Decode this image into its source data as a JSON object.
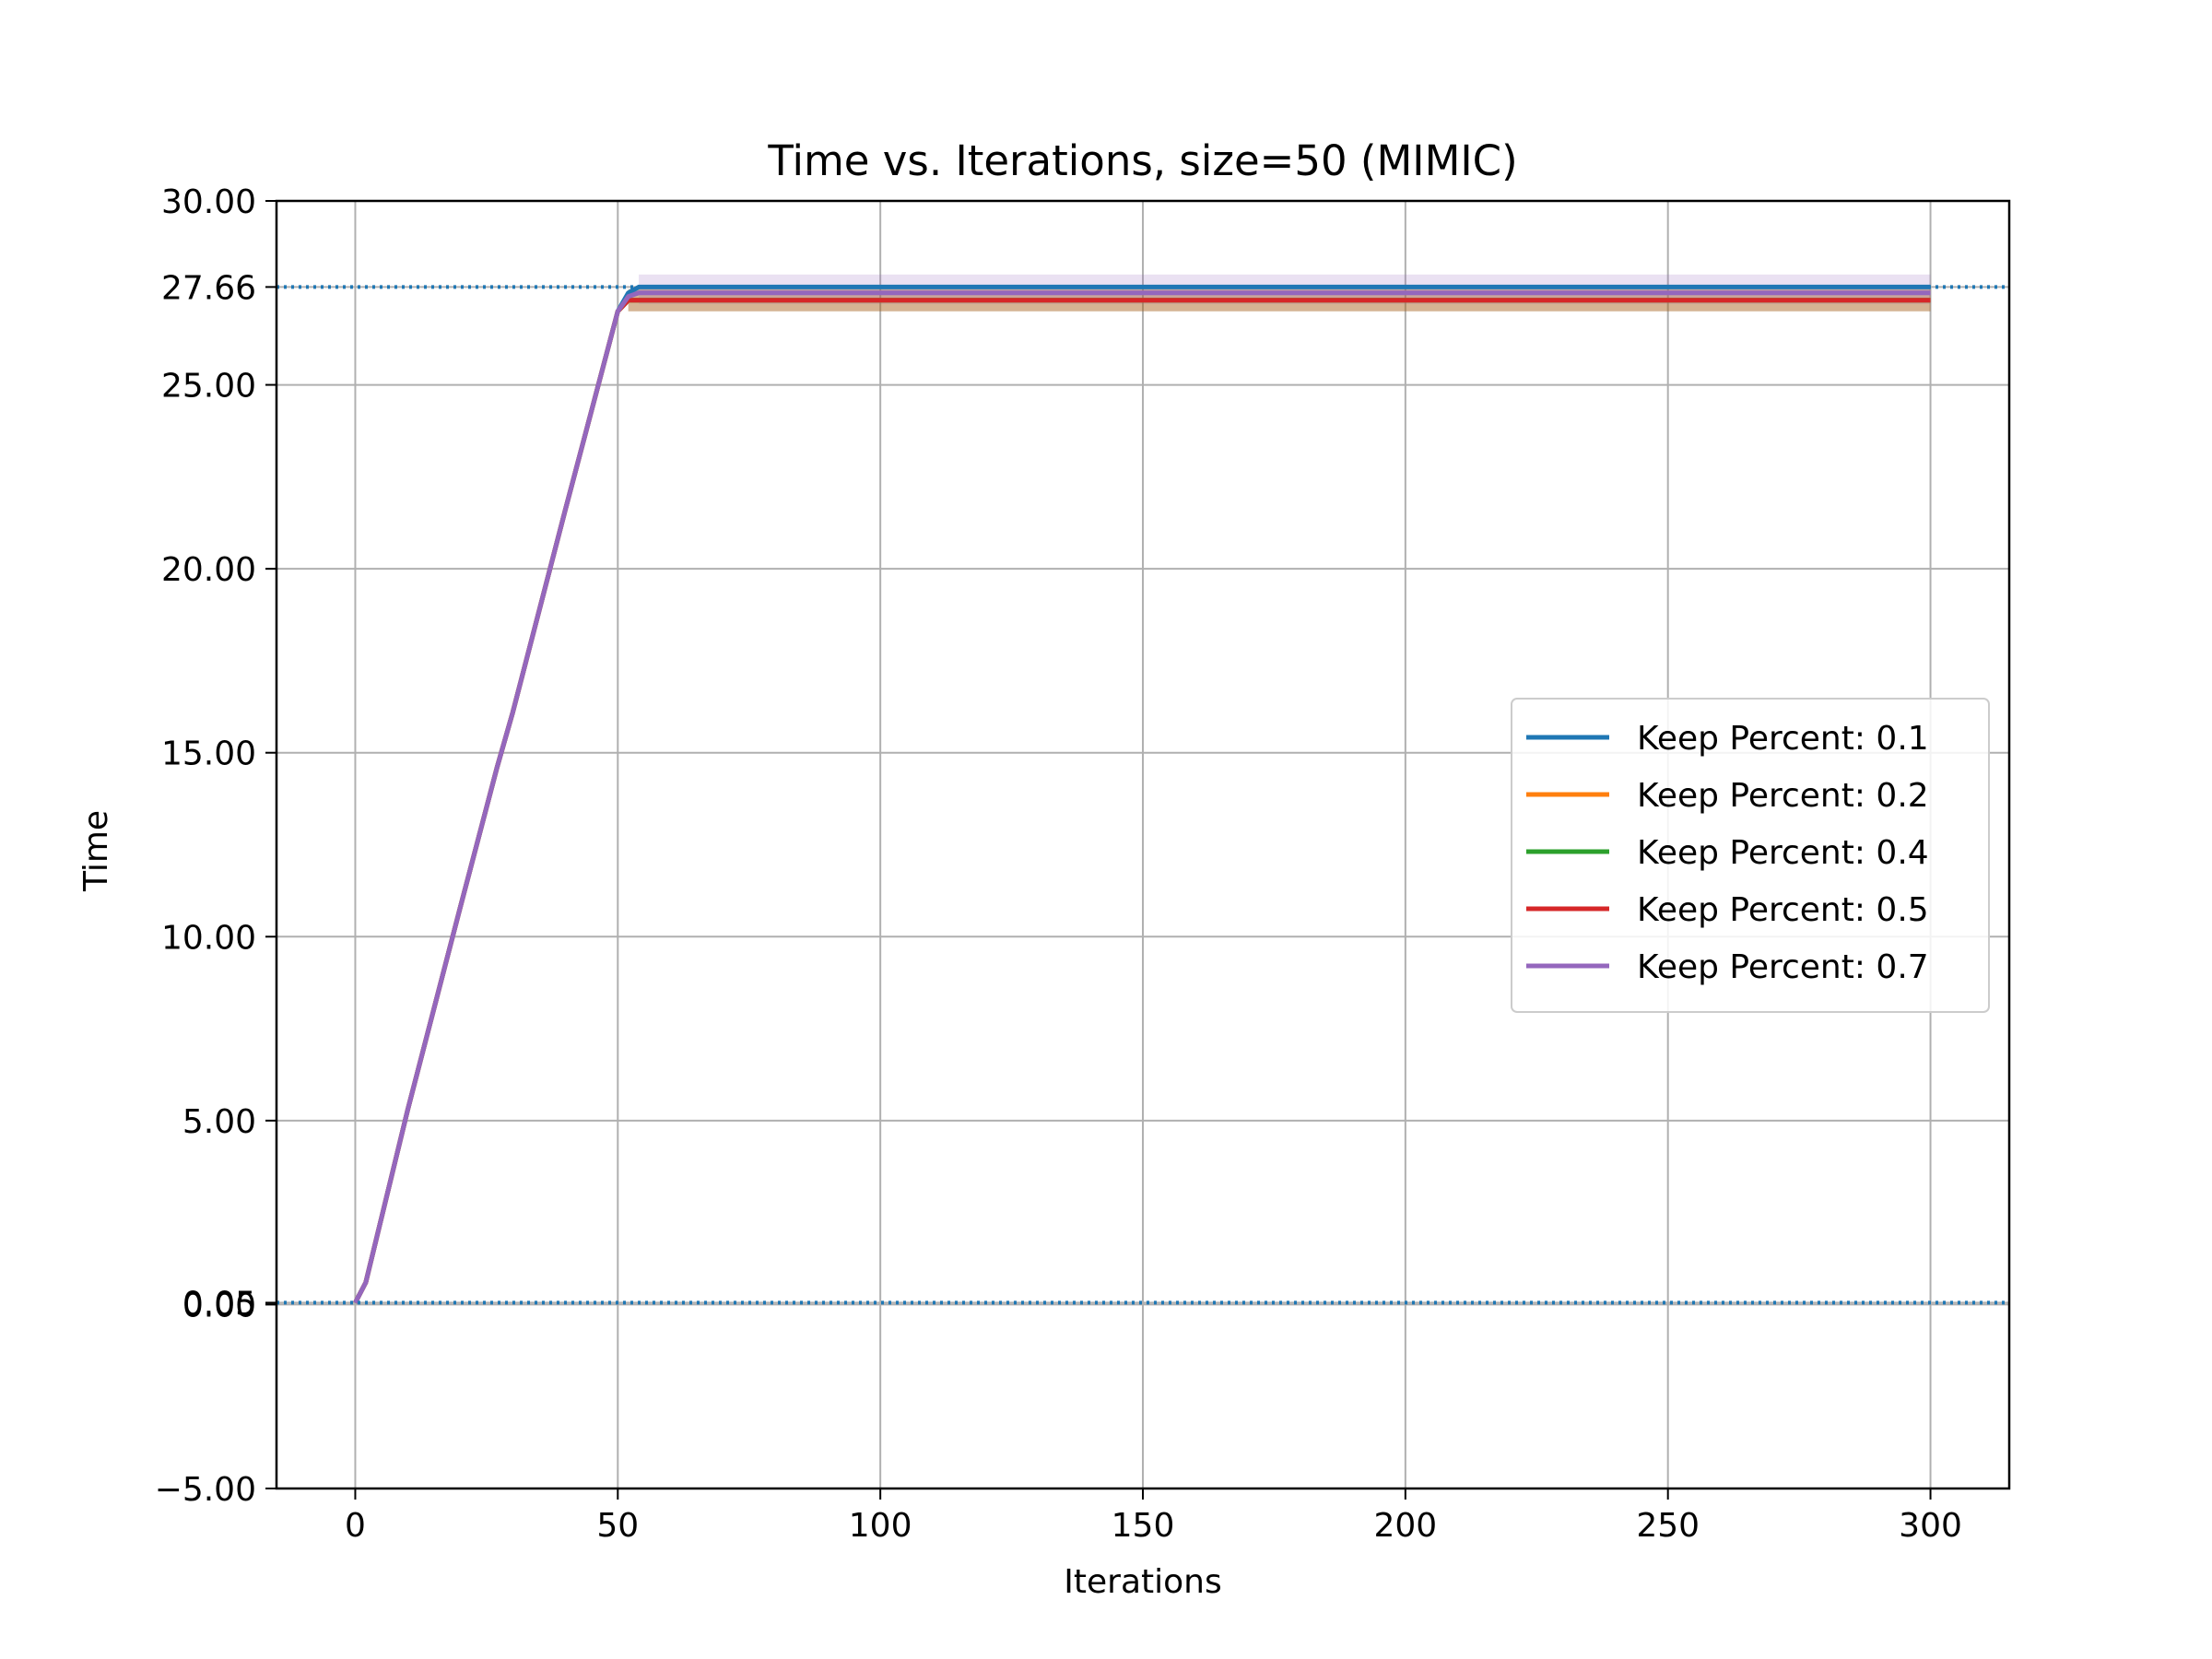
{
  "chart_data": {
    "type": "line",
    "title": "Time vs. Iterations, size=50 (MIMIC)",
    "xlabel": "Iterations",
    "ylabel": "Time",
    "xlim": [
      -15,
      315
    ],
    "ylim": [
      -5,
      30
    ],
    "xticks": [
      0,
      50,
      100,
      150,
      200,
      250,
      300
    ],
    "yticks": [
      -5,
      0,
      0.05,
      5,
      10,
      15,
      20,
      25,
      27.66,
      30
    ],
    "ytick_labels": [
      "−5.00",
      "0.00",
      "0.05",
      "5.00",
      "10.00",
      "15.00",
      "20.00",
      "25.00",
      "27.66",
      "30.00"
    ],
    "grid": true,
    "legend_position": "center-right",
    "reference_lines": [
      {
        "y": 27.66,
        "style": "dotted",
        "color": "#1f77b4"
      },
      {
        "y": 0.05,
        "style": "dotted",
        "color": "#1f77b4"
      }
    ],
    "series": [
      {
        "name": "Keep Percent: 0.1",
        "color": "#1f77b4",
        "x": [
          0,
          2,
          10,
          20,
          27,
          30,
          40,
          45,
          50,
          52,
          54,
          300
        ],
        "y": [
          0.05,
          0.6,
          5.3,
          10.8,
          14.6,
          16.1,
          21.6,
          24.3,
          27.0,
          27.5,
          27.66,
          27.66
        ],
        "band": [
          27.66,
          27.66
        ]
      },
      {
        "name": "Keep Percent: 0.2",
        "color": "#ff7f0e",
        "x": [
          0,
          2,
          10,
          20,
          27,
          30,
          40,
          45,
          50,
          52,
          300
        ],
        "y": [
          0.05,
          0.6,
          5.3,
          10.8,
          14.6,
          16.1,
          21.6,
          24.3,
          27.0,
          27.3,
          27.3
        ],
        "band": [
          27.0,
          27.6
        ]
      },
      {
        "name": "Keep Percent: 0.4",
        "color": "#2ca02c",
        "x": [
          0,
          2,
          10,
          20,
          27,
          30,
          40,
          45,
          50,
          52,
          300
        ],
        "y": [
          0.05,
          0.6,
          5.3,
          10.8,
          14.6,
          16.1,
          21.6,
          24.3,
          27.0,
          27.3,
          27.3
        ],
        "band": [
          27.0,
          27.6
        ]
      },
      {
        "name": "Keep Percent: 0.5",
        "color": "#d62728",
        "x": [
          0,
          2,
          10,
          20,
          27,
          30,
          40,
          45,
          50,
          52,
          300
        ],
        "y": [
          0.05,
          0.6,
          5.3,
          10.8,
          14.6,
          16.1,
          21.6,
          24.3,
          27.0,
          27.3,
          27.3
        ],
        "band": [
          27.0,
          27.6
        ]
      },
      {
        "name": "Keep Percent: 0.7",
        "color": "#9467bd",
        "x": [
          0,
          2,
          10,
          20,
          27,
          30,
          40,
          45,
          50,
          52,
          54,
          300
        ],
        "y": [
          0.05,
          0.6,
          5.3,
          10.8,
          14.6,
          16.1,
          21.6,
          24.3,
          27.0,
          27.4,
          27.5,
          27.5
        ],
        "band": [
          27.2,
          28.0
        ]
      }
    ]
  }
}
